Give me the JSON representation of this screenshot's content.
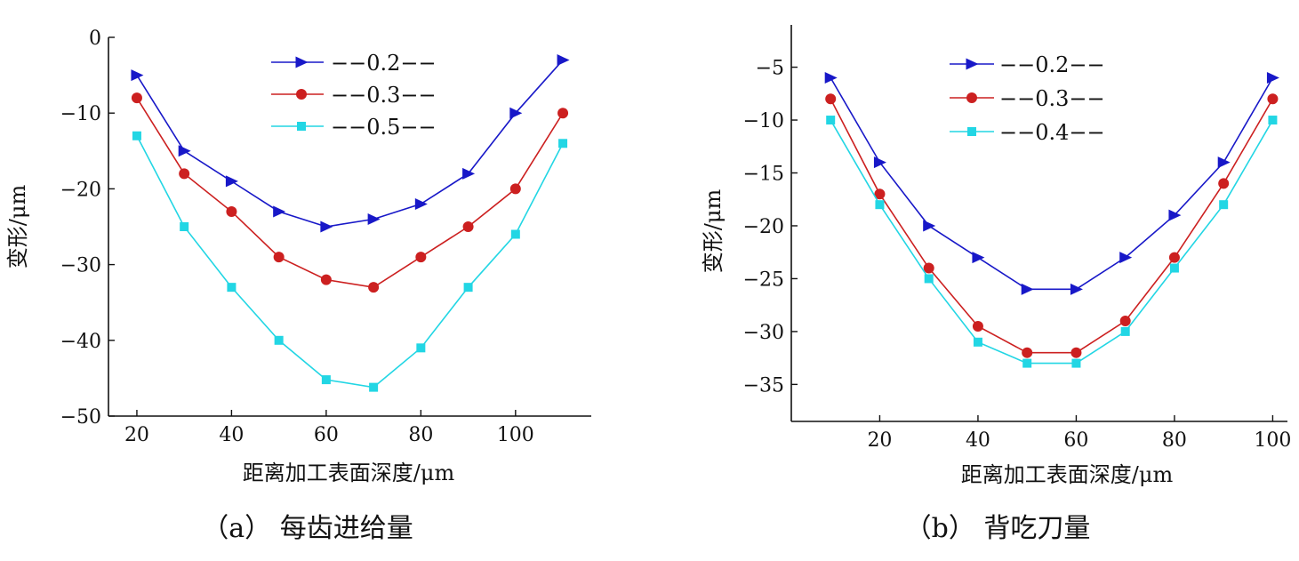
{
  "colors": {
    "s1": "#1818c8",
    "s2": "#cc2020",
    "s3": "#22d6e4",
    "s4": "#22d6e4"
  },
  "chart_data": [
    {
      "type": "line",
      "caption": "（a） 每齿进给量",
      "xlabel": "距离加工表面深度/μm",
      "ylabel": "变形/μm",
      "xlim": [
        14,
        116
      ],
      "ylim": [
        -50,
        0
      ],
      "x_ticks": [
        20,
        40,
        60,
        80,
        100
      ],
      "y_ticks": [
        0,
        -10,
        -20,
        -30,
        -40,
        -50
      ],
      "x": [
        20,
        30,
        40,
        50,
        60,
        70,
        80,
        90,
        100,
        110
      ],
      "legend_position": "top-right",
      "series": [
        {
          "name": "−−0.2−−",
          "marker": "triangle-right",
          "color": "#1818c8",
          "values": [
            -5,
            -15,
            -19,
            -23,
            -25,
            -24,
            -22,
            -18,
            -10,
            -3
          ]
        },
        {
          "name": "−−0.3−−",
          "marker": "circle",
          "color": "#cc2020",
          "values": [
            -8,
            -18,
            -23,
            -29,
            -32,
            -33,
            -29,
            -25,
            -20,
            -10
          ]
        },
        {
          "name": "−−0.5−−",
          "marker": "square",
          "color": "#22d6e4",
          "values": [
            -13,
            -25,
            -33,
            -40,
            -45.2,
            -46.2,
            -41,
            -33,
            -26,
            -14
          ]
        }
      ]
    },
    {
      "type": "line",
      "caption": "（b） 背吃刀量",
      "xlabel": "距离加工表面深度/μm",
      "ylabel": "变形/μm",
      "xlim": [
        2,
        103
      ],
      "ylim": [
        -38.5,
        -1
      ],
      "x_ticks": [
        20,
        40,
        60,
        80,
        100
      ],
      "y_ticks": [
        -5,
        -10,
        -15,
        -20,
        -25,
        -30,
        -35
      ],
      "x": [
        10,
        20,
        30,
        40,
        50,
        60,
        70,
        80,
        90,
        100
      ],
      "legend_position": "top-right",
      "series": [
        {
          "name": "−−0.2−−",
          "marker": "triangle-right",
          "color": "#1818c8",
          "values": [
            -6,
            -14,
            -20,
            -23,
            -26,
            -26,
            -23,
            -19,
            -14,
            -6
          ]
        },
        {
          "name": "−−0.3−−",
          "marker": "circle",
          "color": "#cc2020",
          "values": [
            -8,
            -17,
            -24,
            -29.5,
            -32,
            -32,
            -29,
            -23,
            -16,
            -8
          ]
        },
        {
          "name": "−−0.4−−",
          "marker": "square",
          "color": "#22d6e4",
          "values": [
            -10,
            -18,
            -25,
            -31,
            -33,
            -33,
            -30,
            -24,
            -18,
            -10
          ]
        }
      ]
    }
  ]
}
